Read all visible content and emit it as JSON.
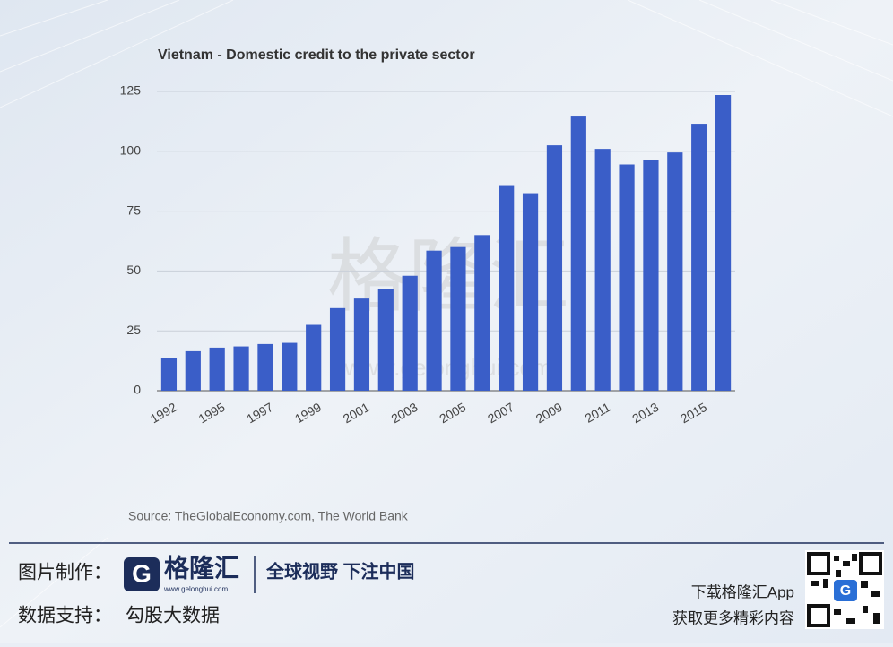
{
  "chart_data": {
    "type": "bar",
    "title": "Vietnam - Domestic credit to the private sector",
    "categories": [
      "1992",
      null,
      "1995",
      null,
      "1997",
      null,
      "1999",
      null,
      "2001",
      null,
      "2003",
      null,
      "2005",
      null,
      "2007",
      null,
      "2009",
      null,
      "2011",
      null,
      "2013",
      null,
      "2015",
      null
    ],
    "values": [
      13.5,
      16.5,
      18,
      18.5,
      19.5,
      20,
      27.5,
      34.5,
      38.5,
      42.5,
      48,
      58.5,
      60,
      65,
      85.5,
      82.5,
      102.5,
      114.5,
      101,
      94.5,
      96.5,
      99.5,
      111.5,
      123.5
    ],
    "color": "#3a5ec8",
    "ylim": [
      0,
      125
    ],
    "yticks": [
      0,
      25,
      50,
      75,
      100,
      125
    ],
    "grid": true,
    "source": "Source: TheGlobalEconomy.com, The World Bank"
  },
  "watermark": {
    "text": "格隆汇",
    "url": "www.gelonghui.com"
  },
  "footer": {
    "made_by_label": "图片制作：",
    "logo_text": "格隆汇",
    "logo_url": "www.gelonghui.com",
    "slogan": "全球视野 下注中国",
    "data_label": "数据支持：",
    "data_provider": "勾股大数据",
    "download": "下载格隆汇App",
    "more": "获取更多精彩内容"
  }
}
